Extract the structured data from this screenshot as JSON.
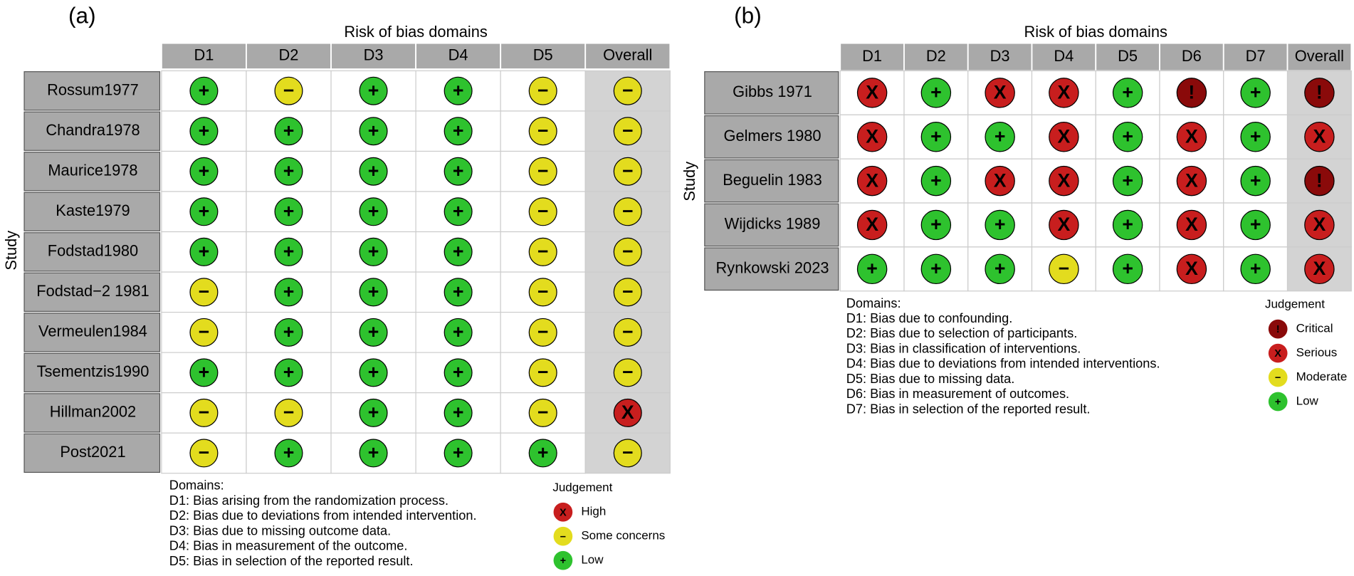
{
  "panels": [
    {
      "label": "(a)",
      "title": "Risk of bias domains",
      "y_label": "Study",
      "columns": [
        "D1",
        "D2",
        "D3",
        "D4",
        "D5",
        "Overall"
      ],
      "rows": [
        {
          "study": "Rossum1977",
          "judgements": [
            "+",
            "−",
            "+",
            "+",
            "−",
            "−"
          ]
        },
        {
          "study": "Chandra1978",
          "judgements": [
            "+",
            "+",
            "+",
            "+",
            "−",
            "−"
          ]
        },
        {
          "study": "Maurice1978",
          "judgements": [
            "+",
            "+",
            "+",
            "+",
            "−",
            "−"
          ]
        },
        {
          "study": "Kaste1979",
          "judgements": [
            "+",
            "+",
            "+",
            "+",
            "−",
            "−"
          ]
        },
        {
          "study": "Fodstad1980",
          "judgements": [
            "+",
            "+",
            "+",
            "+",
            "−",
            "−"
          ]
        },
        {
          "study": "Fodstad−2 1981",
          "judgements": [
            "−",
            "+",
            "+",
            "+",
            "−",
            "−"
          ]
        },
        {
          "study": "Vermeulen1984",
          "judgements": [
            "−",
            "+",
            "+",
            "+",
            "−",
            "−"
          ]
        },
        {
          "study": "Tsementzis1990",
          "judgements": [
            "+",
            "+",
            "+",
            "+",
            "−",
            "−"
          ]
        },
        {
          "study": "Hillman2002",
          "judgements": [
            "−",
            "−",
            "+",
            "+",
            "−",
            "X"
          ]
        },
        {
          "study": "Post2021",
          "judgements": [
            "−",
            "+",
            "+",
            "+",
            "+",
            "−"
          ]
        }
      ],
      "domains_title": "Domains:",
      "domains": [
        "D1: Bias arising from the randomization process.",
        "D2: Bias due to deviations from intended intervention.",
        "D3: Bias due to missing outcome data.",
        "D4: Bias in measurement of the outcome.",
        "D5: Bias in selection of the reported result."
      ],
      "legend_title": "Judgement",
      "legend": [
        {
          "symbol": "X",
          "label": "High",
          "color": "#c81e1e"
        },
        {
          "symbol": "−",
          "label": "Some concerns",
          "color": "#e3dc1e"
        },
        {
          "symbol": "+",
          "label": "Low",
          "color": "#2ec22e"
        }
      ]
    },
    {
      "label": "(b)",
      "title": "Risk of bias domains",
      "y_label": "Study",
      "columns": [
        "D1",
        "D2",
        "D3",
        "D4",
        "D5",
        "D6",
        "D7",
        "Overall"
      ],
      "rows": [
        {
          "study": "Gibbs 1971",
          "judgements": [
            "X",
            "+",
            "X",
            "X",
            "+",
            "!",
            "+",
            "!"
          ]
        },
        {
          "study": "Gelmers 1980",
          "judgements": [
            "X",
            "+",
            "+",
            "X",
            "+",
            "X",
            "+",
            "X"
          ]
        },
        {
          "study": "Beguelin 1983",
          "judgements": [
            "X",
            "+",
            "X",
            "X",
            "+",
            "X",
            "+",
            "!"
          ]
        },
        {
          "study": "Wijdicks 1989",
          "judgements": [
            "X",
            "+",
            "+",
            "X",
            "+",
            "X",
            "+",
            "X"
          ]
        },
        {
          "study": "Rynkowski 2023",
          "judgements": [
            "+",
            "+",
            "+",
            "−",
            "+",
            "X",
            "+",
            "X"
          ]
        }
      ],
      "domains_title": "Domains:",
      "domains": [
        "D1: Bias due to confounding.",
        "D2: Bias due to selection of participants.",
        "D3: Bias in classification of interventions.",
        "D4: Bias due to deviations from intended interventions.",
        "D5: Bias due to missing data.",
        "D6: Bias in measurement of outcomes.",
        "D7: Bias in selection of the reported result."
      ],
      "legend_title": "Judgement",
      "legend": [
        {
          "symbol": "!",
          "label": "Critical",
          "color": "#8a0a0a"
        },
        {
          "symbol": "X",
          "label": "Serious",
          "color": "#c81e1e"
        },
        {
          "symbol": "−",
          "label": "Moderate",
          "color": "#e3dc1e"
        },
        {
          "symbol": "+",
          "label": "Low",
          "color": "#2ec22e"
        }
      ]
    }
  ]
}
